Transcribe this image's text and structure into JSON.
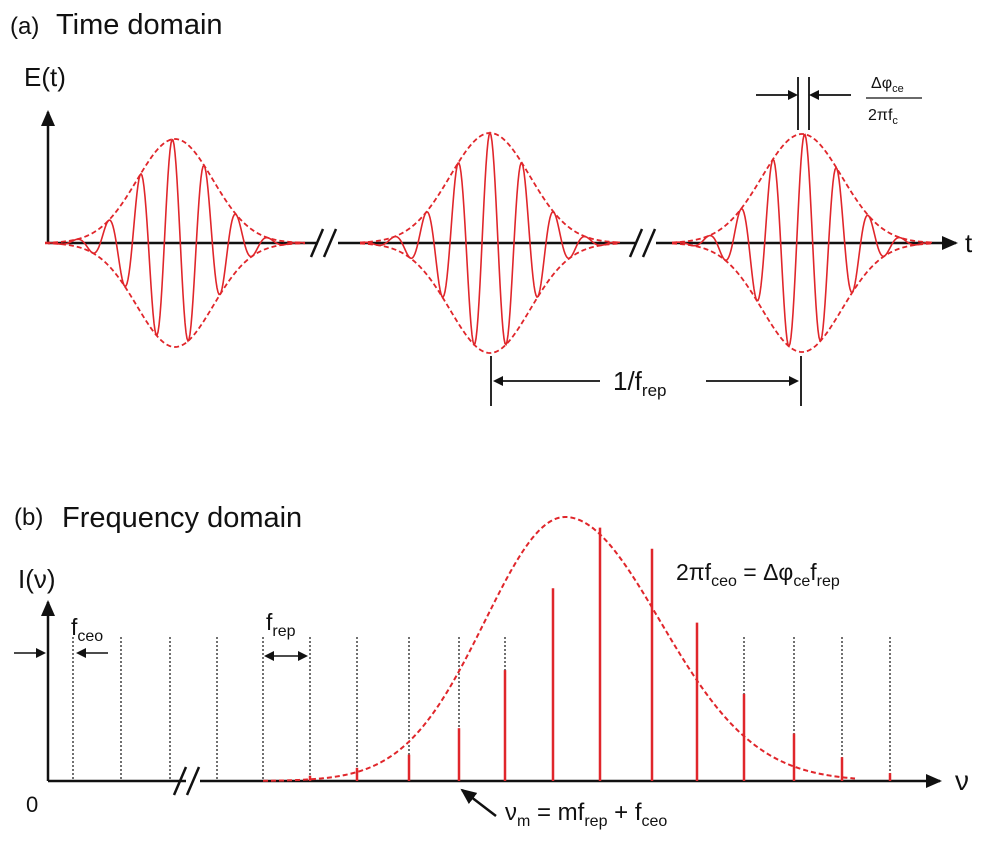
{
  "colors": {
    "pulse": "#e0262b",
    "envelope": "#e0262b",
    "axis": "#111111",
    "comb_grid": "#111111",
    "comb_line": "#e0262b"
  },
  "time_domain": {
    "panel_label": "(a)",
    "title": "Time domain",
    "y_axis": {
      "name": "E",
      "arg": "(t)"
    },
    "x_axis": {
      "name": "t"
    },
    "phase_slip": {
      "numerator": "Δφ",
      "numerator_sub": "ce",
      "denominator": "2πf",
      "denominator_sub": "c"
    },
    "period": {
      "text": "1/f",
      "sub": "rep"
    },
    "pulse_count": 3
  },
  "frequency_domain": {
    "panel_label": "(b)",
    "title": "Frequency domain",
    "y_axis": {
      "name": "I",
      "arg": "(ν)"
    },
    "x_axis": {
      "name": "ν"
    },
    "origin": "0",
    "offset": {
      "base": "f",
      "sub": "ceo"
    },
    "spacing": {
      "base": "f",
      "sub": "rep"
    },
    "relation": {
      "lhs": "2πf",
      "lhs_sub": "ceo",
      "eq": " = Δφ",
      "ce_sub": "ce",
      "f": "f",
      "rep_sub": "rep"
    },
    "mode_formula": {
      "nu": "ν",
      "m_sub": "m",
      "mid": " = mf",
      "rep_sub": "rep",
      "plus": " + f",
      "ceo_sub": "ceo"
    },
    "comb_intensities": [
      0,
      0,
      0,
      0,
      0,
      0.02,
      0.05,
      0.1,
      0.2,
      0.42,
      0.73,
      0.96,
      0.88,
      0.6,
      0.33,
      0.18,
      0.09,
      0.03
    ]
  }
}
